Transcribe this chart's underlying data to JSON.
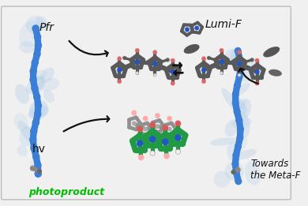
{
  "background_color": "#f0f0f0",
  "border_color": "#bbbbbb",
  "labels": {
    "pfr": "Pfr",
    "lumi_f": "Lumi-F",
    "hv": "hv",
    "photoproduct": "photoproduct",
    "towards": "Towards\nthe Meta-F"
  },
  "label_colors": {
    "pfr": "#111111",
    "lumi_f": "#111111",
    "hv": "#111111",
    "photoproduct": "#00bb00",
    "towards": "#111111"
  },
  "helix_color": "#3a7fd5",
  "ribbon_color": "#a8c8e8",
  "bond_color": "#606060",
  "bond_color2": "#555555",
  "nitrogen_color": "#2255cc",
  "oxygen_color": "#dd5555",
  "white_color": "#eeeeee",
  "green_color": "#229944",
  "teal_color": "#55b0a0",
  "figsize": [
    3.9,
    2.61
  ],
  "dpi": 100
}
